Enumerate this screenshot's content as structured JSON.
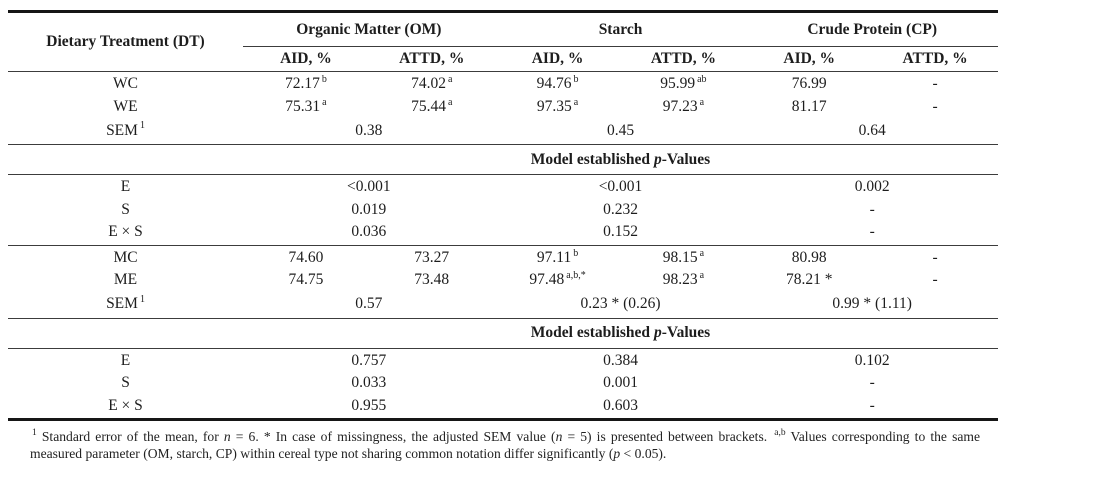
{
  "header": {
    "dt": "Dietary Treatment (DT)",
    "groups": [
      "Organic Matter (OM)",
      "Starch",
      "Crude Protein (CP)"
    ],
    "sub": [
      "AID, %",
      "ATTD, %",
      "AID, %",
      "ATTD, %",
      "AID, %",
      "ATTD, %"
    ]
  },
  "pv_title": {
    "pre": "Model established ",
    "it": "p",
    "post": "-Values"
  },
  "wheat": {
    "rows": [
      {
        "label": "WC",
        "cells": [
          {
            "v": "72.17",
            "s": "b"
          },
          {
            "v": "74.02",
            "s": "a"
          },
          {
            "v": "94.76",
            "s": "b"
          },
          {
            "v": "95.99",
            "s": "ab"
          },
          {
            "v": "76.99"
          },
          {
            "v": "-"
          }
        ]
      },
      {
        "label": "WE",
        "cells": [
          {
            "v": "75.31",
            "s": "a"
          },
          {
            "v": "75.44",
            "s": "a"
          },
          {
            "v": "97.35",
            "s": "a"
          },
          {
            "v": "97.23",
            "s": "a"
          },
          {
            "v": "81.17"
          },
          {
            "v": "-"
          }
        ]
      }
    ],
    "sem": {
      "label": "SEM",
      "sup": "1",
      "values": [
        "0.38",
        "0.45",
        "0.64"
      ]
    }
  },
  "pvalues1": {
    "rows": [
      {
        "label": "E",
        "values": [
          "<0.001",
          "<0.001",
          "0.002"
        ]
      },
      {
        "label": "S",
        "values": [
          "0.019",
          "0.232",
          "-"
        ]
      },
      {
        "label": "E × S",
        "values": [
          "0.036",
          "0.152",
          "-"
        ]
      }
    ]
  },
  "maize": {
    "rows": [
      {
        "label": "MC",
        "cells": [
          {
            "v": "74.60"
          },
          {
            "v": "73.27"
          },
          {
            "v": "97.11",
            "s": "b"
          },
          {
            "v": "98.15",
            "s": "a"
          },
          {
            "v": "80.98"
          },
          {
            "v": "-"
          }
        ]
      },
      {
        "label": "ME",
        "cells": [
          {
            "v": "74.75"
          },
          {
            "v": "73.48"
          },
          {
            "v": "97.48",
            "s": "a,b,*"
          },
          {
            "v": "98.23",
            "s": "a"
          },
          {
            "v": "78.21 *"
          },
          {
            "v": "-"
          }
        ]
      }
    ],
    "sem": {
      "label": "SEM",
      "sup": "1",
      "values": [
        "0.57",
        "0.23 * (0.26)",
        "0.99 * (1.11)"
      ]
    }
  },
  "pvalues2": {
    "rows": [
      {
        "label": "E",
        "values": [
          "0.757",
          "0.384",
          "0.102"
        ]
      },
      {
        "label": "S",
        "values": [
          "0.033",
          "0.001",
          "-"
        ]
      },
      {
        "label": "E × S",
        "values": [
          "0.955",
          "0.603",
          "-"
        ]
      }
    ]
  },
  "footnote": {
    "sup1": "1",
    "t1": " Standard error of the mean, for ",
    "i1": "n",
    "t2": " = 6. * In case of missingness, the adjusted SEM value (",
    "i2": "n",
    "t3": " = 5) is presented between brackets. ",
    "sup2": "a,b",
    "t4": " Values corresponding to the same measured parameter (OM, starch, CP) within cereal type not sharing common notation differ significantly (",
    "i3": "p",
    "t5": " < 0.05)."
  }
}
